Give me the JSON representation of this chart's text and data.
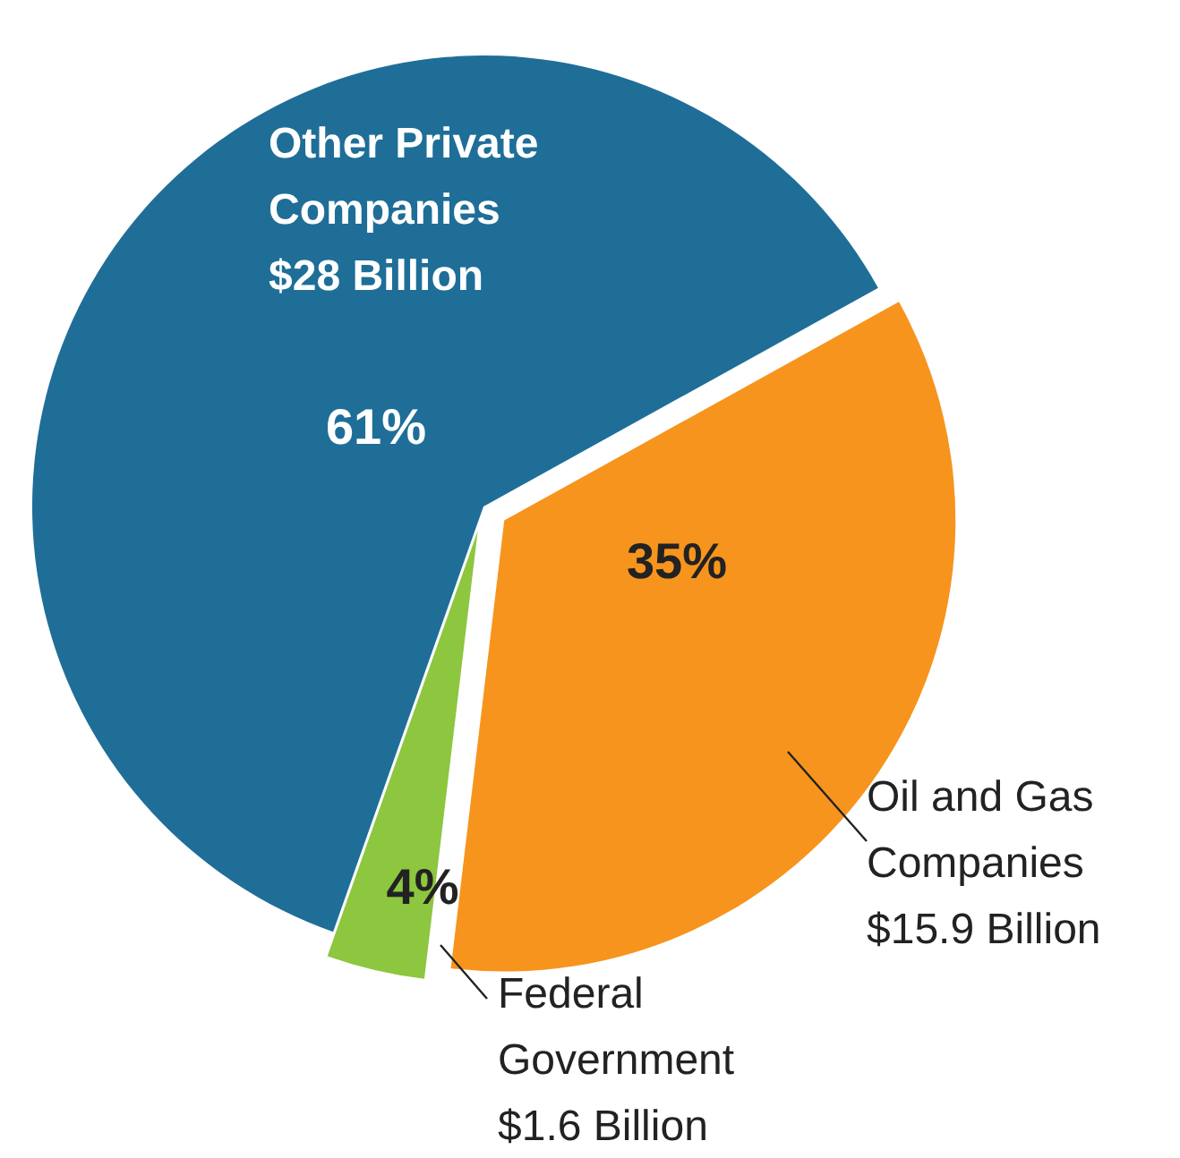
{
  "chart_data": {
    "type": "pie",
    "categories": [
      "Oil and Gas Companies",
      "Federal Government",
      "Other Private Companies"
    ],
    "values": [
      15.9,
      1.6,
      28
    ],
    "colors": [
      "#f7941d",
      "#8dc63f",
      "#1f6e98"
    ],
    "value_labels": [
      "$15.9 Billion",
      "$1.6 Billion",
      "$28 Billion"
    ],
    "annotations": [
      "35%",
      "4%",
      "61%"
    ]
  }
}
